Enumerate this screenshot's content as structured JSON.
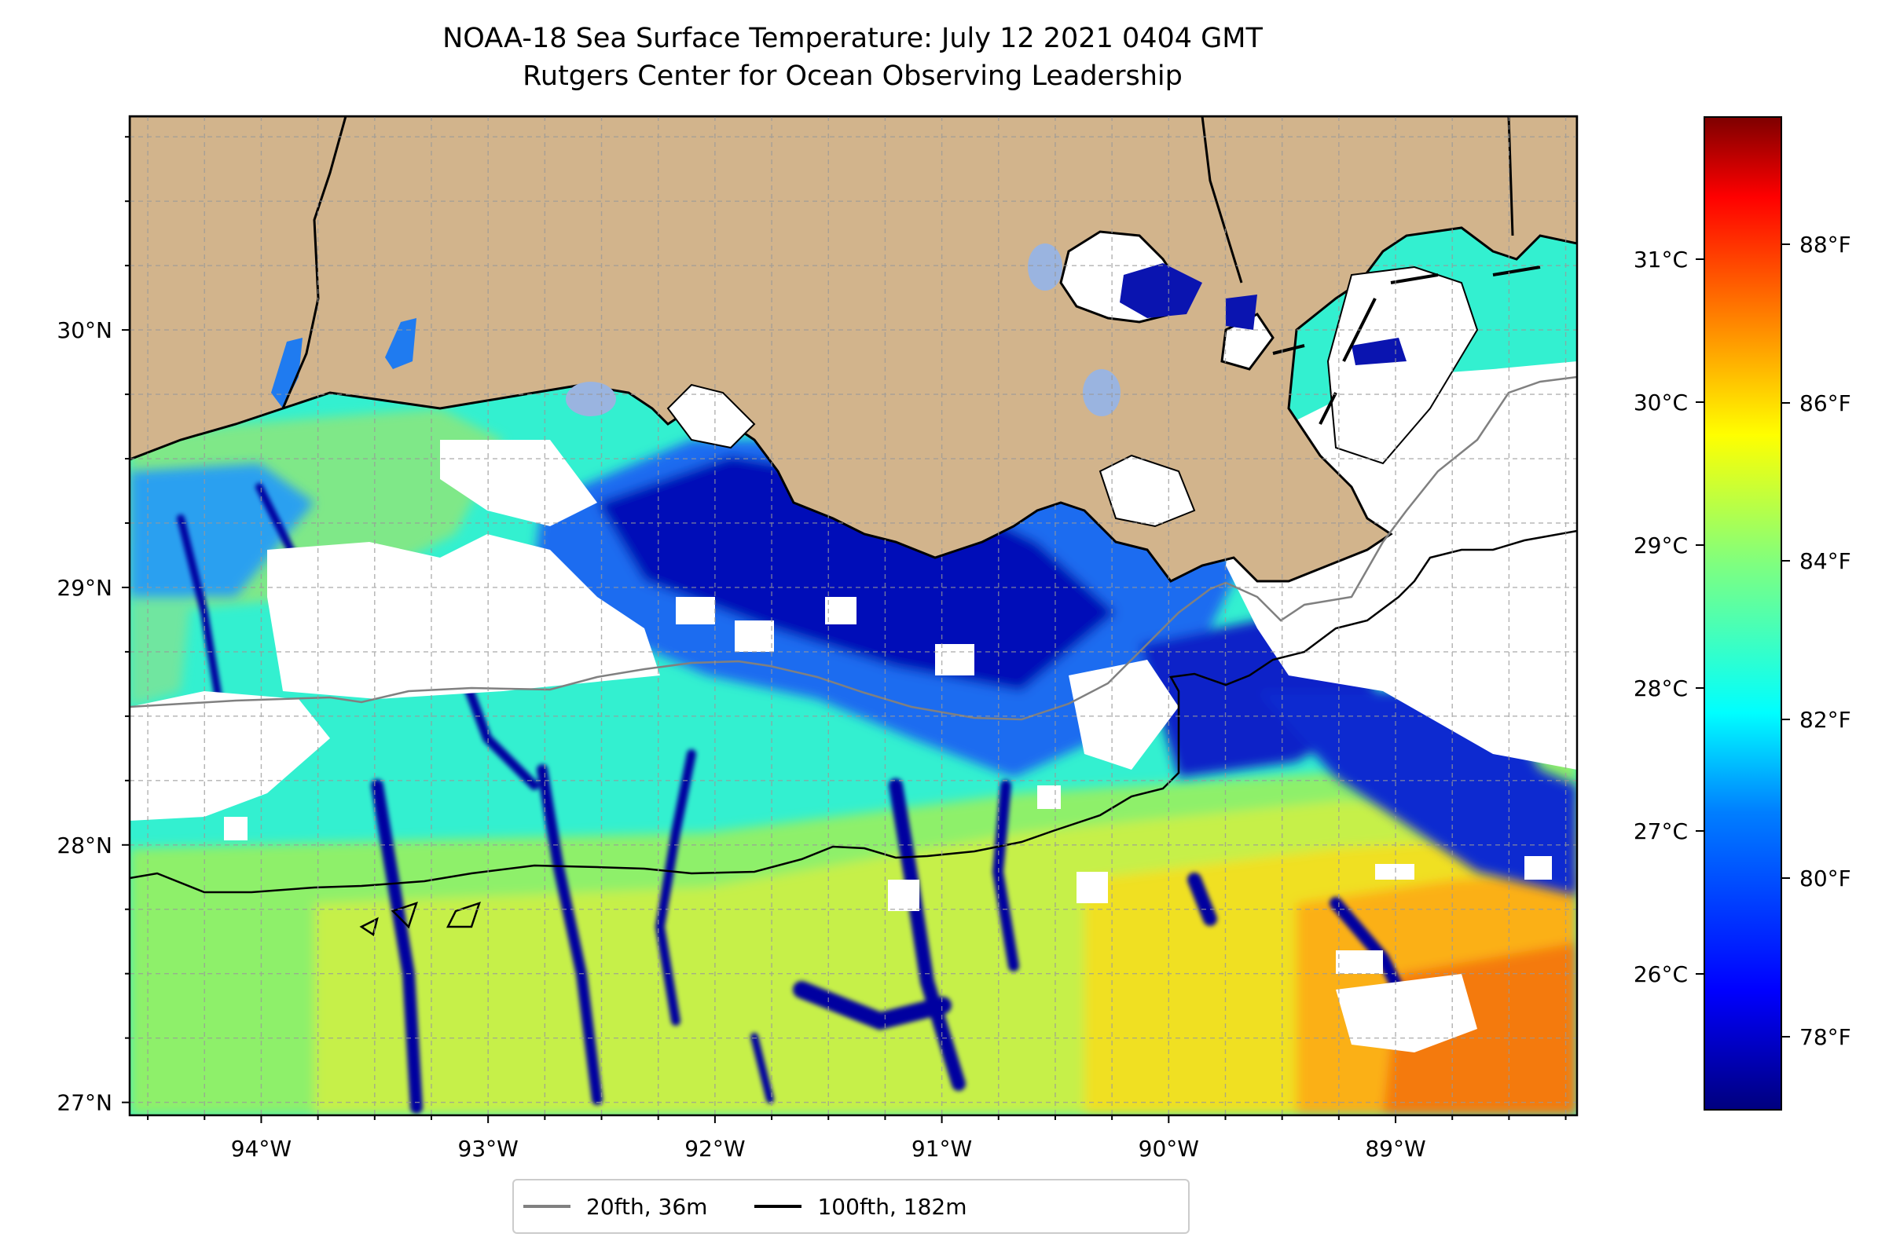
{
  "title": {
    "line1": "NOAA-18 Sea Surface Temperature: July 12 2021 0404 GMT",
    "line2": "Rutgers Center for Ocean Observing Leadership"
  },
  "map": {
    "lon_range": [
      -94.58,
      -88.2
    ],
    "lat_range": [
      26.95,
      30.83
    ],
    "lon_ticks": [
      {
        "value": -94,
        "label": "94°W"
      },
      {
        "value": -93,
        "label": "93°W"
      },
      {
        "value": -92,
        "label": "92°W"
      },
      {
        "value": -91,
        "label": "91°W"
      },
      {
        "value": -90,
        "label": "90°W"
      },
      {
        "value": -89,
        "label": "89°W"
      }
    ],
    "lat_ticks": [
      {
        "value": 27,
        "label": "27°N"
      },
      {
        "value": 28,
        "label": "28°N"
      },
      {
        "value": 29,
        "label": "29°N"
      },
      {
        "value": 30,
        "label": "30°N"
      }
    ],
    "grid": "dashed, every 0.25°",
    "land_color": "#d2b48c",
    "cloud_color": "#ffffff"
  },
  "colorbar": {
    "colormap": "jet",
    "celsius_ticks": [
      "31°C",
      "30°C",
      "29°C",
      "28°C",
      "27°C",
      "26°C"
    ],
    "fahrenheit_ticks": [
      "88°F",
      "86°F",
      "84°F",
      "82°F",
      "80°F",
      "78°F"
    ]
  },
  "legend": {
    "items": [
      {
        "label": "20fth, 36m",
        "color": "#808080"
      },
      {
        "label": "100fth, 182m",
        "color": "#000000"
      }
    ]
  }
}
